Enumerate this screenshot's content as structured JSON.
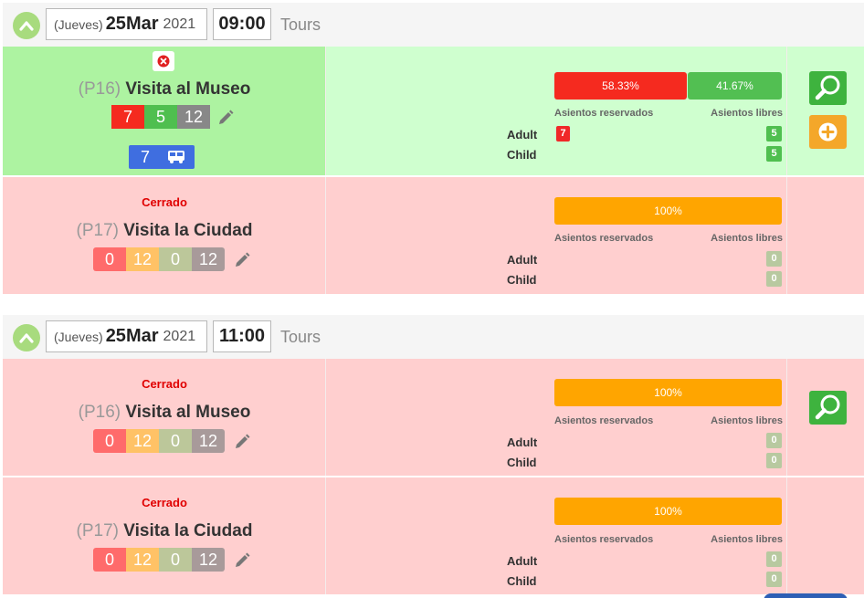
{
  "groups": [
    {
      "date": {
        "weekday": "(Jueves)",
        "day": "25",
        "month": "Mar",
        "year": "2021"
      },
      "time": "09:00",
      "category": "Tours",
      "rows": [
        {
          "status": "",
          "code": "(P16)",
          "name": "Visita al Museo",
          "counts": [
            "7",
            "5",
            "12"
          ],
          "transport": "7",
          "bar": [
            {
              "label": "58.33%",
              "value": 58.33,
              "color": "#f52a1f"
            },
            {
              "label": "41.67%",
              "value": 41.67,
              "color": "#52bf52"
            }
          ],
          "reserved_label": "Asientos reservados",
          "free_label": "Asientos libres",
          "pax": [
            {
              "type": "Adult",
              "reserved": "7",
              "free": "5"
            },
            {
              "type": "Child",
              "reserved": "",
              "free": "5"
            }
          ]
        },
        {
          "status": "Cerrado",
          "code": "(P17)",
          "name": "Visita la Ciudad",
          "counts": [
            "0",
            "12",
            "0",
            "12"
          ],
          "bar": [
            {
              "label": "100%",
              "value": 100,
              "color": "#ffa500"
            }
          ],
          "reserved_label": "Asientos reservados",
          "free_label": "Asientos libres",
          "pax": [
            {
              "type": "Adult",
              "free": "0"
            },
            {
              "type": "Child",
              "free": "0"
            }
          ]
        }
      ]
    },
    {
      "date": {
        "weekday": "(Jueves)",
        "day": "25",
        "month": "Mar",
        "year": "2021"
      },
      "time": "11:00",
      "category": "Tours",
      "rows": [
        {
          "status": "Cerrado",
          "code": "(P16)",
          "name": "Visita al Museo",
          "counts": [
            "0",
            "12",
            "0",
            "12"
          ],
          "bar": [
            {
              "label": "100%",
              "value": 100,
              "color": "#ffa500"
            }
          ],
          "reserved_label": "Asientos reservados",
          "free_label": "Asientos libres",
          "pax": [
            {
              "type": "Adult",
              "free": "0"
            },
            {
              "type": "Child",
              "free": "0"
            }
          ]
        },
        {
          "status": "Cerrado",
          "code": "(P17)",
          "name": "Visita la Ciudad",
          "counts": [
            "0",
            "12",
            "0",
            "12"
          ],
          "bar": [
            {
              "label": "100%",
              "value": 100,
              "color": "#ffa500"
            }
          ],
          "reserved_label": "Asientos reservados",
          "free_label": "Asientos libres",
          "pax": [
            {
              "type": "Adult",
              "free": "0"
            },
            {
              "type": "Child",
              "free": "0"
            }
          ]
        }
      ]
    }
  ],
  "icons": [
    "chevron-up-icon",
    "close-icon",
    "pencil-icon",
    "bus-icon",
    "magnifier-icon",
    "plus-icon"
  ],
  "colors": {
    "open_row": "#cfffcf",
    "open_left": "#adf3a1",
    "closed_row": "#ffcfcf",
    "closed_text": "#e00000",
    "search_button": "#3eb33e",
    "add_button": "#f4a72a"
  }
}
